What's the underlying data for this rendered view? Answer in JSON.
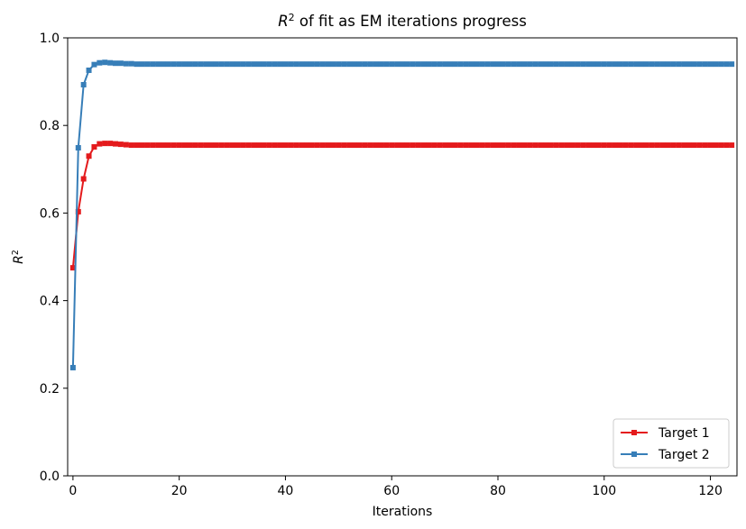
{
  "chart_data": {
    "type": "line",
    "title_prefix": "R",
    "title_sup": "2",
    "title_suffix": " of fit as EM iterations progress",
    "xlabel": "Iterations",
    "ylabel_main": "R",
    "ylabel_sup": "2",
    "xlim": [
      -1,
      125
    ],
    "ylim": [
      0,
      1
    ],
    "xticks": [
      0,
      20,
      40,
      60,
      80,
      100,
      120
    ],
    "yticks": [
      0.0,
      0.2,
      0.4,
      0.6,
      0.8,
      1.0
    ],
    "xtick_labels": [
      "0",
      "20",
      "40",
      "60",
      "80",
      "100",
      "120"
    ],
    "ytick_labels": [
      "0.0",
      "0.2",
      "0.4",
      "0.6",
      "0.8",
      "1.0"
    ],
    "grid": false,
    "legend_position": "lower-right",
    "x_end": 124,
    "series": [
      {
        "name": "Target 1",
        "color": "#e41a1c",
        "marker": "square",
        "head": [
          0.475,
          0.603,
          0.678,
          0.73,
          0.751,
          0.758,
          0.759,
          0.759,
          0.758,
          0.757,
          0.756,
          0.755
        ],
        "tail": 0.755
      },
      {
        "name": "Target 2",
        "color": "#377eb8",
        "marker": "square",
        "head": [
          0.247,
          0.749,
          0.893,
          0.926,
          0.939,
          0.943,
          0.944,
          0.943,
          0.942,
          0.942,
          0.941,
          0.941
        ],
        "tail": 0.94
      }
    ]
  }
}
